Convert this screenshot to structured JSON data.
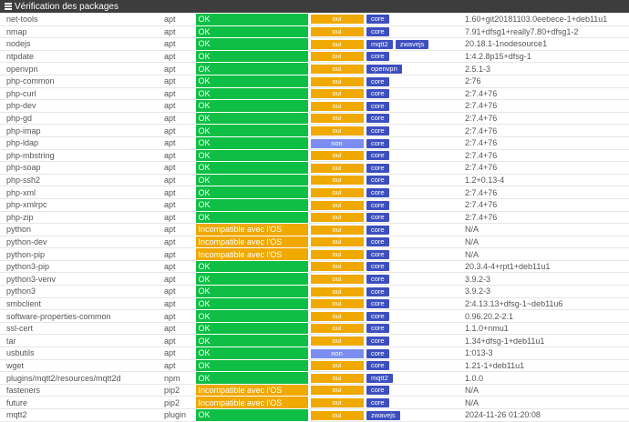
{
  "header": {
    "title": "Vérification des packages"
  },
  "colors": {
    "ok": "#0fbf45",
    "warning": "#efa900",
    "oui": "#efa900",
    "non": "#7b8df0",
    "tag": "#3d4fbf"
  },
  "packages": [
    {
      "name": "net-tools",
      "type": "apt",
      "status": "OK",
      "status_type": "ok",
      "needed": "oui",
      "tags": [
        "core"
      ],
      "version": "1.60+git20181103.0eebece-1+deb11u1"
    },
    {
      "name": "nmap",
      "type": "apt",
      "status": "OK",
      "status_type": "ok",
      "needed": "oui",
      "tags": [
        "core"
      ],
      "version": "7.91+dfsg1+really7.80+dfsg1-2"
    },
    {
      "name": "nodejs",
      "type": "apt",
      "status": "OK",
      "status_type": "ok",
      "needed": "oui",
      "tags": [
        "mqtt2",
        "zwavejs"
      ],
      "version": "20.18.1-1nodesource1"
    },
    {
      "name": "ntpdate",
      "type": "apt",
      "status": "OK",
      "status_type": "ok",
      "needed": "oui",
      "tags": [
        "core"
      ],
      "version": "1:4.2.8p15+dfsg-1"
    },
    {
      "name": "openvpn",
      "type": "apt",
      "status": "OK",
      "status_type": "ok",
      "needed": "oui",
      "tags": [
        "openvpn"
      ],
      "version": "2.5.1-3"
    },
    {
      "name": "php-common",
      "type": "apt",
      "status": "OK",
      "status_type": "ok",
      "needed": "oui",
      "tags": [
        "core"
      ],
      "version": "2:76"
    },
    {
      "name": "php-curl",
      "type": "apt",
      "status": "OK",
      "status_type": "ok",
      "needed": "oui",
      "tags": [
        "core"
      ],
      "version": "2:7.4+76"
    },
    {
      "name": "php-dev",
      "type": "apt",
      "status": "OK",
      "status_type": "ok",
      "needed": "oui",
      "tags": [
        "core"
      ],
      "version": "2:7.4+76"
    },
    {
      "name": "php-gd",
      "type": "apt",
      "status": "OK",
      "status_type": "ok",
      "needed": "oui",
      "tags": [
        "core"
      ],
      "version": "2:7.4+76"
    },
    {
      "name": "php-imap",
      "type": "apt",
      "status": "OK",
      "status_type": "ok",
      "needed": "oui",
      "tags": [
        "core"
      ],
      "version": "2:7.4+76"
    },
    {
      "name": "php-ldap",
      "type": "apt",
      "status": "OK",
      "status_type": "ok",
      "needed": "non",
      "tags": [
        "core"
      ],
      "version": "2:7.4+76"
    },
    {
      "name": "php-mbstring",
      "type": "apt",
      "status": "OK",
      "status_type": "ok",
      "needed": "oui",
      "tags": [
        "core"
      ],
      "version": "2:7.4+76"
    },
    {
      "name": "php-soap",
      "type": "apt",
      "status": "OK",
      "status_type": "ok",
      "needed": "oui",
      "tags": [
        "core"
      ],
      "version": "2:7.4+76"
    },
    {
      "name": "php-ssh2",
      "type": "apt",
      "status": "OK",
      "status_type": "ok",
      "needed": "oui",
      "tags": [
        "core"
      ],
      "version": "1.2+0.13-4"
    },
    {
      "name": "php-xml",
      "type": "apt",
      "status": "OK",
      "status_type": "ok",
      "needed": "oui",
      "tags": [
        "core"
      ],
      "version": "2:7.4+76"
    },
    {
      "name": "php-xmlrpc",
      "type": "apt",
      "status": "OK",
      "status_type": "ok",
      "needed": "oui",
      "tags": [
        "core"
      ],
      "version": "2:7.4+76"
    },
    {
      "name": "php-zip",
      "type": "apt",
      "status": "OK",
      "status_type": "ok",
      "needed": "oui",
      "tags": [
        "core"
      ],
      "version": "2:7.4+76"
    },
    {
      "name": "python",
      "type": "apt",
      "status": "Incompatible avec l'OS",
      "status_type": "warning",
      "needed": "oui",
      "tags": [
        "core"
      ],
      "version": "N/A"
    },
    {
      "name": "python-dev",
      "type": "apt",
      "status": "Incompatible avec l'OS",
      "status_type": "warning",
      "needed": "oui",
      "tags": [
        "core"
      ],
      "version": "N/A"
    },
    {
      "name": "python-pip",
      "type": "apt",
      "status": "Incompatible avec l'OS",
      "status_type": "warning",
      "needed": "oui",
      "tags": [
        "core"
      ],
      "version": "N/A"
    },
    {
      "name": "python3-pip",
      "type": "apt",
      "status": "OK",
      "status_type": "ok",
      "needed": "oui",
      "tags": [
        "core"
      ],
      "version": "20.3.4-4+rpt1+deb11u1"
    },
    {
      "name": "python3-venv",
      "type": "apt",
      "status": "OK",
      "status_type": "ok",
      "needed": "oui",
      "tags": [
        "core"
      ],
      "version": "3.9.2-3"
    },
    {
      "name": "python3",
      "type": "apt",
      "status": "OK",
      "status_type": "ok",
      "needed": "oui",
      "tags": [
        "core"
      ],
      "version": "3.9.2-3"
    },
    {
      "name": "smbclient",
      "type": "apt",
      "status": "OK",
      "status_type": "ok",
      "needed": "oui",
      "tags": [
        "core"
      ],
      "version": "2:4.13.13+dfsg-1~deb11u6"
    },
    {
      "name": "software-properties-common",
      "type": "apt",
      "status": "OK",
      "status_type": "ok",
      "needed": "oui",
      "tags": [
        "core"
      ],
      "version": "0.96.20.2-2.1"
    },
    {
      "name": "ssl-cert",
      "type": "apt",
      "status": "OK",
      "status_type": "ok",
      "needed": "oui",
      "tags": [
        "core"
      ],
      "version": "1.1.0+nmu1"
    },
    {
      "name": "tar",
      "type": "apt",
      "status": "OK",
      "status_type": "ok",
      "needed": "oui",
      "tags": [
        "core"
      ],
      "version": "1.34+dfsg-1+deb11u1"
    },
    {
      "name": "usbutils",
      "type": "apt",
      "status": "OK",
      "status_type": "ok",
      "needed": "non",
      "tags": [
        "core"
      ],
      "version": "1:013-3"
    },
    {
      "name": "wget",
      "type": "apt",
      "status": "OK",
      "status_type": "ok",
      "needed": "oui",
      "tags": [
        "core"
      ],
      "version": "1.21-1+deb11u1"
    },
    {
      "name": "plugins/mqtt2/resources/mqtt2d",
      "type": "npm",
      "status": "OK",
      "status_type": "ok",
      "needed": "oui",
      "tags": [
        "mqtt2"
      ],
      "version": "1.0.0"
    },
    {
      "name": "fasteners",
      "type": "pip2",
      "status": "Incompatible avec l'OS",
      "status_type": "warning",
      "needed": "oui",
      "tags": [
        "core"
      ],
      "version": "N/A"
    },
    {
      "name": "future",
      "type": "pip2",
      "status": "Incompatible avec l'OS",
      "status_type": "warning",
      "needed": "oui",
      "tags": [
        "core"
      ],
      "version": "N/A"
    },
    {
      "name": "mqtt2",
      "type": "plugin",
      "status": "OK",
      "status_type": "ok",
      "needed": "oui",
      "tags": [
        "zwavejs"
      ],
      "version": "2024-11-26 01:20:08"
    }
  ]
}
